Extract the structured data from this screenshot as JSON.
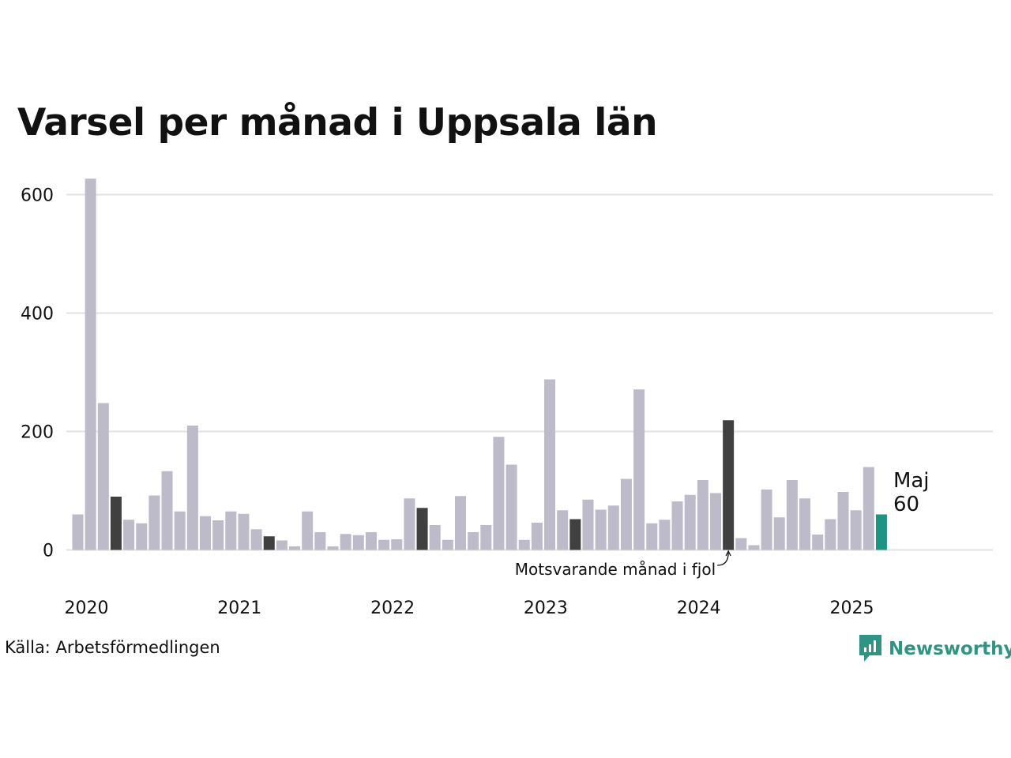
{
  "title": "Varsel per månad i Uppsala län",
  "source": "Källa: Arbetsförmedlingen",
  "brand": "Newsworthy",
  "colors": {
    "bar": "#bdbbc9",
    "same_month_prev_years": "#404040",
    "current": "#1c9484",
    "grid": "#e2e2e2",
    "brand": "#2e9484"
  },
  "chart_data": {
    "type": "bar",
    "y_ticks": [
      0,
      200,
      400,
      600
    ],
    "ylim": [
      0,
      640
    ],
    "year_labels": [
      "2020",
      "2021",
      "2022",
      "2023",
      "2024",
      "2025"
    ],
    "values": [
      60,
      627,
      248,
      90,
      51,
      45,
      92,
      133,
      65,
      210,
      57,
      50,
      65,
      61,
      35,
      23,
      16,
      6,
      65,
      30,
      6,
      27,
      25,
      30,
      17,
      18,
      87,
      71,
      42,
      17,
      91,
      30,
      42,
      191,
      144,
      17,
      46,
      288,
      67,
      52,
      85,
      68,
      75,
      120,
      271,
      45,
      51,
      82,
      93,
      118,
      96,
      219,
      20,
      8,
      102,
      55,
      118,
      87,
      26,
      52,
      98,
      67,
      140,
      60
    ],
    "highlight_prev_year_indices": [
      3,
      15,
      27,
      39,
      51
    ],
    "current_index": 63,
    "current_label": "Maj",
    "current_value_label": "60",
    "annotation": "Motsvarande månad i fjol"
  }
}
